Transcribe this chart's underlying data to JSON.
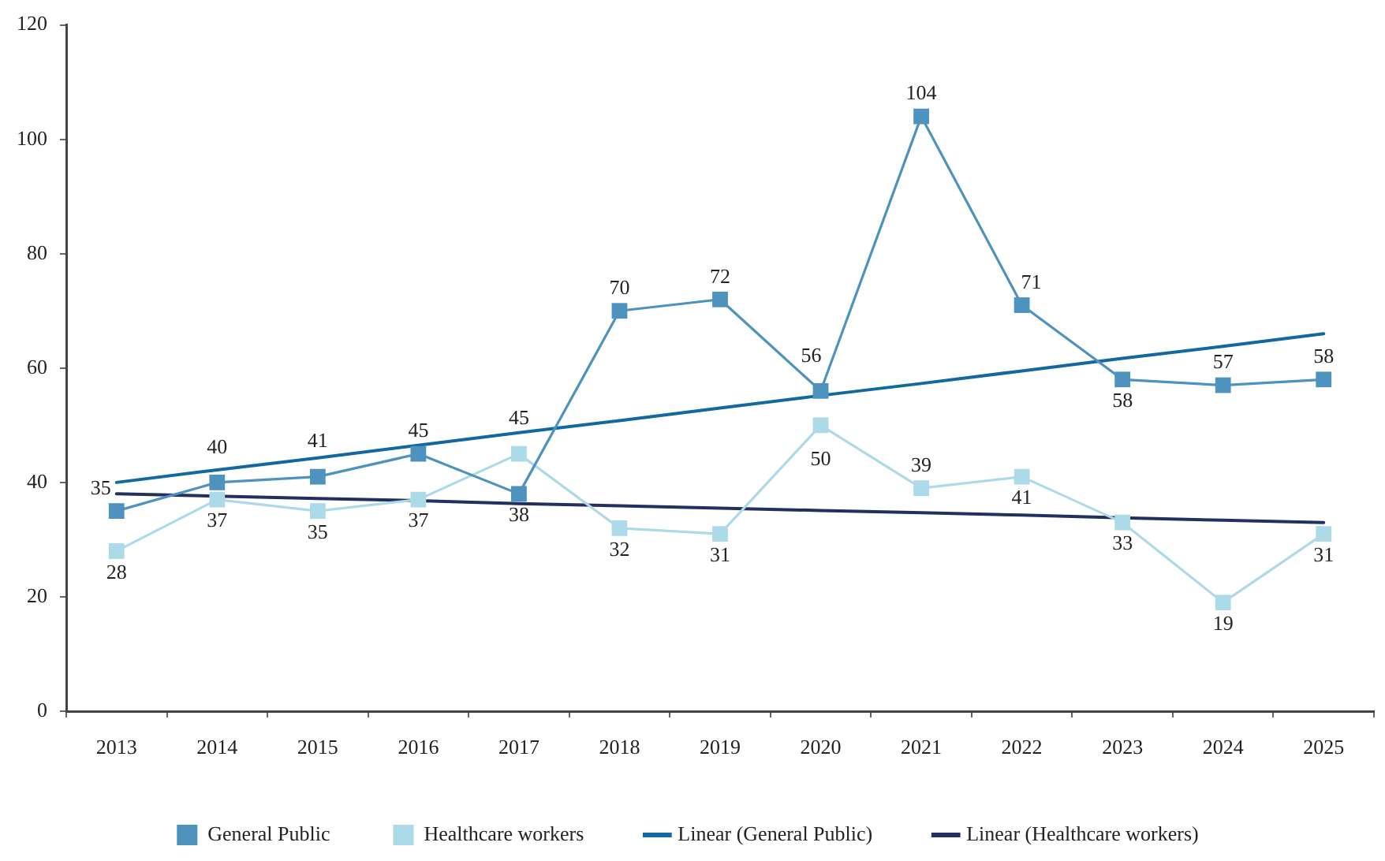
{
  "chart_data": {
    "type": "line",
    "categories": [
      "2013",
      "2014",
      "2015",
      "2016",
      "2017",
      "2018",
      "2019",
      "2020",
      "2021",
      "2022",
      "2023",
      "2024",
      "2025"
    ],
    "series": [
      {
        "name": "General Public",
        "color": "#4e92be",
        "values": [
          35,
          40,
          41,
          45,
          38,
          70,
          72,
          56,
          104,
          71,
          58,
          57,
          58
        ],
        "value_labels": [
          "35",
          "40",
          "41",
          "45",
          "38",
          "70",
          "72",
          "56",
          "104",
          "71",
          "58",
          "57",
          "58"
        ]
      },
      {
        "name": "Healthcare workers",
        "color": "#addae9",
        "values": [
          28,
          37,
          35,
          37,
          45,
          32,
          31,
          50,
          39,
          41,
          33,
          19,
          31
        ],
        "value_labels": [
          "28",
          "37",
          "35",
          "37",
          "45",
          "32",
          "31",
          "50",
          "39",
          "41",
          "33",
          "19",
          "31"
        ]
      },
      {
        "name": "Linear (General Public)",
        "type": "line",
        "marker": "none",
        "color": "#1268a0",
        "values": [
          40,
          42.2,
          44.3,
          46.5,
          48.7,
          50.8,
          53,
          55.2,
          57.3,
          59.5,
          61.7,
          63.8,
          66
        ]
      },
      {
        "name": "Linear (Healthcare workers)",
        "type": "line",
        "marker": "none",
        "color": "#22305f",
        "values": [
          38,
          37.6,
          37.2,
          36.8,
          36.3,
          35.9,
          35.5,
          35.1,
          34.7,
          34.3,
          33.8,
          33.4,
          33
        ]
      }
    ],
    "ylim": [
      0,
      120
    ],
    "yticks": [
      0,
      20,
      40,
      60,
      80,
      100,
      120
    ],
    "grid": false,
    "legend": "bottom",
    "marker": "square"
  }
}
